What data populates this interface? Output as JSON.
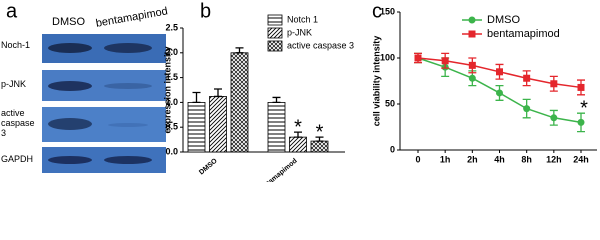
{
  "blot": {
    "label": "a",
    "columns": [
      "DMSO",
      "bentamapimod"
    ],
    "rows": [
      "Noch-1",
      "p-JNK",
      "active caspase 3",
      "GAPDH"
    ]
  },
  "chart_data": [
    {
      "type": "bar",
      "label": "b",
      "y_label": "expression intensity",
      "categories": [
        "DMSO",
        "bentamapimod"
      ],
      "series": [
        {
          "name": "Notch 1",
          "color": "#000000",
          "pattern": "horizontal",
          "values": [
            1.0,
            1.0
          ],
          "errors": [
            0.2,
            0.1
          ]
        },
        {
          "name": "p-JNK",
          "color": "#000000",
          "pattern": "diagonal",
          "values": [
            1.12,
            0.3
          ],
          "errors": [
            0.15,
            0.1
          ]
        },
        {
          "name": "active caspase 3",
          "color": "#000000",
          "pattern": "crosshatch",
          "values": [
            2.0,
            0.22
          ],
          "errors": [
            0.1,
            0.08
          ]
        }
      ],
      "annotations": [
        {
          "text": "*",
          "series": 1,
          "index": 1
        },
        {
          "text": "*",
          "series": 2,
          "index": 1
        }
      ],
      "ylim": [
        0,
        2.5
      ],
      "yticks": [
        {
          "value": 0,
          "label": "0.0"
        },
        0.5,
        {
          "value": 1,
          "label": "1.0"
        },
        1.5,
        {
          "value": 2,
          "label": "2.0"
        },
        2.5
      ],
      "legend": "top-right"
    },
    {
      "type": "line",
      "label": "c",
      "y_label": "cell viability intensity",
      "categories": [
        "0",
        "1h",
        "2h",
        "4h",
        "8h",
        "12h",
        "24h"
      ],
      "series": [
        {
          "name": "DMSO",
          "color": "#3cb44b",
          "values": [
            100,
            90,
            78,
            62,
            45,
            35,
            30
          ],
          "errors": [
            5,
            10,
            8,
            8,
            10,
            8,
            10
          ]
        },
        {
          "name": "bentamapimod",
          "color": "#e4262c",
          "values": [
            100,
            97,
            92,
            85,
            78,
            72,
            68
          ],
          "errors": [
            5,
            8,
            8,
            8,
            8,
            8,
            8
          ]
        }
      ],
      "annotations": [
        {
          "text": "*",
          "series": 0,
          "index": 6
        }
      ],
      "ylim": [
        0,
        150
      ],
      "yticks": [
        0,
        50,
        100,
        150
      ],
      "legend": "top-right"
    }
  ]
}
